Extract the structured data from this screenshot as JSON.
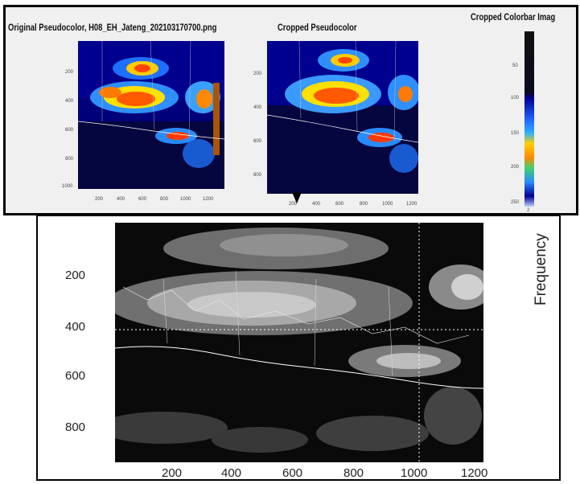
{
  "top_panel": {
    "original_title": "Original Pseudocolor, H08_EH_Jateng_202103170700.png",
    "cropped_title": "Cropped Pseudocolor",
    "colorbar_title": "Cropped Colorbar Imag",
    "original_y_ticks": [
      "200",
      "400",
      "600",
      "800",
      "1000"
    ],
    "original_x_ticks": [
      "200",
      "400",
      "600",
      "800",
      "1000",
      "1200"
    ],
    "cropped_y_ticks": [
      "200",
      "400",
      "600",
      "800"
    ],
    "cropped_x_ticks": [
      "200",
      "400",
      "600",
      "800",
      "1000",
      "1200"
    ],
    "colorbar_ticks": [
      "50",
      "100",
      "150",
      "200",
      "250"
    ],
    "colorbar_bottom": "2"
  },
  "bottom_panel": {
    "y_ticks": [
      "200",
      "400",
      "600",
      "800"
    ],
    "x_ticks": [
      "200",
      "400",
      "600",
      "800",
      "1000",
      "1200"
    ],
    "ylabel": "Frequency"
  },
  "colors": {
    "panel_border": "#000000",
    "panel_bg": "#f0f0f0",
    "jet_low": "#00008f",
    "jet_high": "#ff2a00",
    "gray_bg": "#0a0a0a",
    "gray_cloud": "#b5b5b5"
  }
}
